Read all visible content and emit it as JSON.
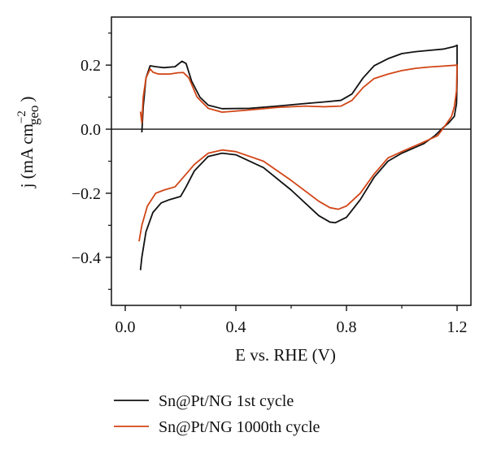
{
  "chart_data": {
    "type": "line",
    "xlabel": "E vs. RHE (V)",
    "ylabel": {
      "main": "j (mA cm",
      "sup": "−2",
      "sub": "geo",
      "close": ")"
    },
    "xlim": [
      -0.05,
      1.25
    ],
    "ylim": [
      -0.55,
      0.35
    ],
    "xticks": [
      0.0,
      0.4,
      0.8,
      1.2
    ],
    "xtick_labels": [
      "0.0",
      "0.4",
      "0.8",
      "1.2"
    ],
    "yticks": [
      0.2,
      0.0,
      -0.2,
      -0.4
    ],
    "ytick_labels": [
      "0.2",
      "0.0",
      "−0.2",
      "−0.4"
    ],
    "zero_line": true,
    "legend_position": "bottom",
    "series": [
      {
        "name": "Sn@Pt/NG 1st cycle",
        "color": "#111111",
        "anodic": [
          [
            0.06,
            -0.01
          ],
          [
            0.065,
            0.07
          ],
          [
            0.075,
            0.16
          ],
          [
            0.09,
            0.198
          ],
          [
            0.11,
            0.195
          ],
          [
            0.14,
            0.192
          ],
          [
            0.18,
            0.195
          ],
          [
            0.205,
            0.212
          ],
          [
            0.22,
            0.205
          ],
          [
            0.24,
            0.15
          ],
          [
            0.27,
            0.1
          ],
          [
            0.3,
            0.075
          ],
          [
            0.35,
            0.064
          ],
          [
            0.45,
            0.065
          ],
          [
            0.55,
            0.072
          ],
          [
            0.65,
            0.08
          ],
          [
            0.72,
            0.085
          ],
          [
            0.78,
            0.09
          ],
          [
            0.82,
            0.11
          ],
          [
            0.86,
            0.16
          ],
          [
            0.9,
            0.198
          ],
          [
            0.95,
            0.22
          ],
          [
            1.0,
            0.236
          ],
          [
            1.05,
            0.242
          ],
          [
            1.1,
            0.246
          ],
          [
            1.15,
            0.25
          ],
          [
            1.19,
            0.258
          ],
          [
            1.2,
            0.262
          ]
        ],
        "cathodic": [
          [
            1.2,
            0.262
          ],
          [
            1.2,
            0.15
          ],
          [
            1.198,
            0.08
          ],
          [
            1.19,
            0.04
          ],
          [
            1.17,
            0.02
          ],
          [
            1.15,
            0.005
          ],
          [
            1.12,
            -0.02
          ],
          [
            1.08,
            -0.045
          ],
          [
            1.0,
            -0.075
          ],
          [
            0.95,
            -0.1
          ],
          [
            0.9,
            -0.15
          ],
          [
            0.85,
            -0.22
          ],
          [
            0.8,
            -0.275
          ],
          [
            0.76,
            -0.292
          ],
          [
            0.74,
            -0.29
          ],
          [
            0.7,
            -0.27
          ],
          [
            0.6,
            -0.19
          ],
          [
            0.5,
            -0.12
          ],
          [
            0.4,
            -0.08
          ],
          [
            0.35,
            -0.075
          ],
          [
            0.3,
            -0.085
          ],
          [
            0.25,
            -0.13
          ],
          [
            0.22,
            -0.18
          ],
          [
            0.2,
            -0.21
          ],
          [
            0.16,
            -0.22
          ],
          [
            0.13,
            -0.23
          ],
          [
            0.1,
            -0.26
          ],
          [
            0.075,
            -0.32
          ],
          [
            0.06,
            -0.4
          ],
          [
            0.055,
            -0.44
          ]
        ]
      },
      {
        "name": "Sn@Pt/NG 1000th cycle",
        "color": "#d24516",
        "anodic": [
          [
            0.055,
            0.055
          ],
          [
            0.06,
            0.02
          ],
          [
            0.065,
            0.1
          ],
          [
            0.075,
            0.16
          ],
          [
            0.09,
            0.188
          ],
          [
            0.1,
            0.178
          ],
          [
            0.12,
            0.172
          ],
          [
            0.16,
            0.172
          ],
          [
            0.19,
            0.176
          ],
          [
            0.21,
            0.177
          ],
          [
            0.23,
            0.16
          ],
          [
            0.26,
            0.1
          ],
          [
            0.3,
            0.065
          ],
          [
            0.35,
            0.053
          ],
          [
            0.45,
            0.06
          ],
          [
            0.55,
            0.068
          ],
          [
            0.65,
            0.072
          ],
          [
            0.72,
            0.07
          ],
          [
            0.78,
            0.072
          ],
          [
            0.82,
            0.09
          ],
          [
            0.86,
            0.13
          ],
          [
            0.9,
            0.158
          ],
          [
            0.95,
            0.172
          ],
          [
            1.0,
            0.183
          ],
          [
            1.05,
            0.19
          ],
          [
            1.1,
            0.194
          ],
          [
            1.15,
            0.197
          ],
          [
            1.2,
            0.2
          ]
        ],
        "cathodic": [
          [
            1.2,
            0.2
          ],
          [
            1.198,
            0.12
          ],
          [
            1.19,
            0.07
          ],
          [
            1.18,
            0.04
          ],
          [
            1.16,
            0.015
          ],
          [
            1.13,
            -0.02
          ],
          [
            1.08,
            -0.04
          ],
          [
            1.0,
            -0.07
          ],
          [
            0.95,
            -0.09
          ],
          [
            0.9,
            -0.14
          ],
          [
            0.85,
            -0.2
          ],
          [
            0.8,
            -0.24
          ],
          [
            0.77,
            -0.25
          ],
          [
            0.74,
            -0.245
          ],
          [
            0.7,
            -0.225
          ],
          [
            0.6,
            -0.16
          ],
          [
            0.5,
            -0.1
          ],
          [
            0.4,
            -0.07
          ],
          [
            0.35,
            -0.065
          ],
          [
            0.3,
            -0.075
          ],
          [
            0.25,
            -0.11
          ],
          [
            0.22,
            -0.14
          ],
          [
            0.18,
            -0.18
          ],
          [
            0.14,
            -0.19
          ],
          [
            0.11,
            -0.2
          ],
          [
            0.08,
            -0.24
          ],
          [
            0.06,
            -0.3
          ],
          [
            0.05,
            -0.35
          ]
        ]
      }
    ]
  }
}
